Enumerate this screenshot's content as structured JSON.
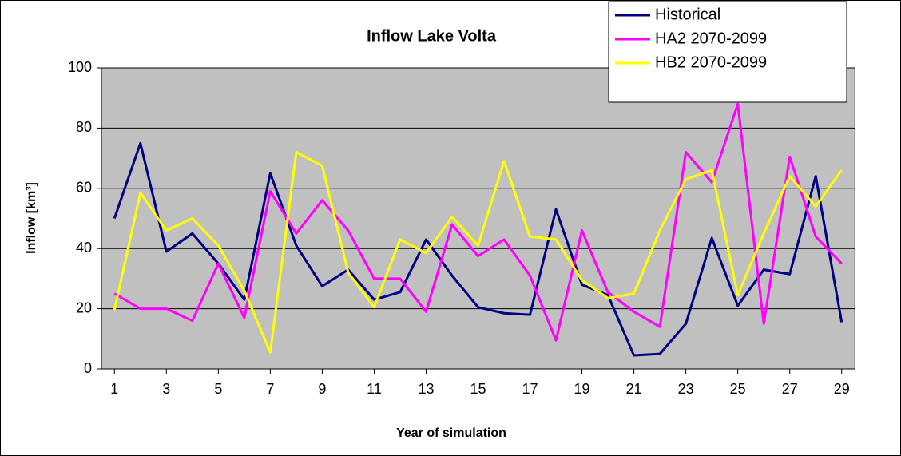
{
  "chart_data": {
    "type": "line",
    "title": "Inflow Lake Volta",
    "xlabel": "Year of simulation",
    "ylabel": "Inflow [km³]",
    "x": [
      1,
      2,
      3,
      4,
      5,
      6,
      7,
      8,
      9,
      10,
      11,
      12,
      13,
      14,
      15,
      16,
      17,
      18,
      19,
      20,
      21,
      22,
      23,
      24,
      25,
      26,
      27,
      28,
      29
    ],
    "xlim": [
      0.5,
      29.5
    ],
    "xticks": [
      1,
      3,
      5,
      7,
      9,
      11,
      13,
      15,
      17,
      19,
      21,
      23,
      25,
      27,
      29
    ],
    "ylim": [
      0,
      100
    ],
    "yticks": [
      0,
      20,
      40,
      60,
      80,
      100
    ],
    "grid": true,
    "legend": "top-right",
    "series": [
      {
        "name": "Historical",
        "color": "#000080",
        "values": [
          50,
          75,
          39,
          45,
          35,
          23,
          65,
          41,
          27.5,
          33,
          23,
          25.5,
          43,
          31,
          20.5,
          18.5,
          18,
          53,
          28,
          24.5,
          4.5,
          5,
          15,
          43.5,
          21,
          33,
          31.5,
          64,
          15.5
        ]
      },
      {
        "name": "HA2 2070-2099",
        "color": "#ff00ff",
        "values": [
          25,
          20,
          20,
          16,
          35,
          17,
          59,
          45,
          56,
          46,
          30,
          30,
          19,
          48,
          37.5,
          43,
          31,
          9.5,
          46,
          25.5,
          19,
          14,
          72,
          62,
          88,
          15,
          70.5,
          44,
          35
        ]
      },
      {
        "name": "HB2 2070-2099",
        "color": "#ffff00",
        "values": [
          19.5,
          58.5,
          46,
          50,
          41,
          26,
          5.5,
          72,
          67.5,
          32,
          20.5,
          43,
          38.5,
          50.5,
          41,
          69,
          44,
          43,
          29.5,
          23.5,
          25,
          46,
          63,
          66,
          24.5,
          45,
          64,
          54,
          66
        ]
      }
    ]
  }
}
